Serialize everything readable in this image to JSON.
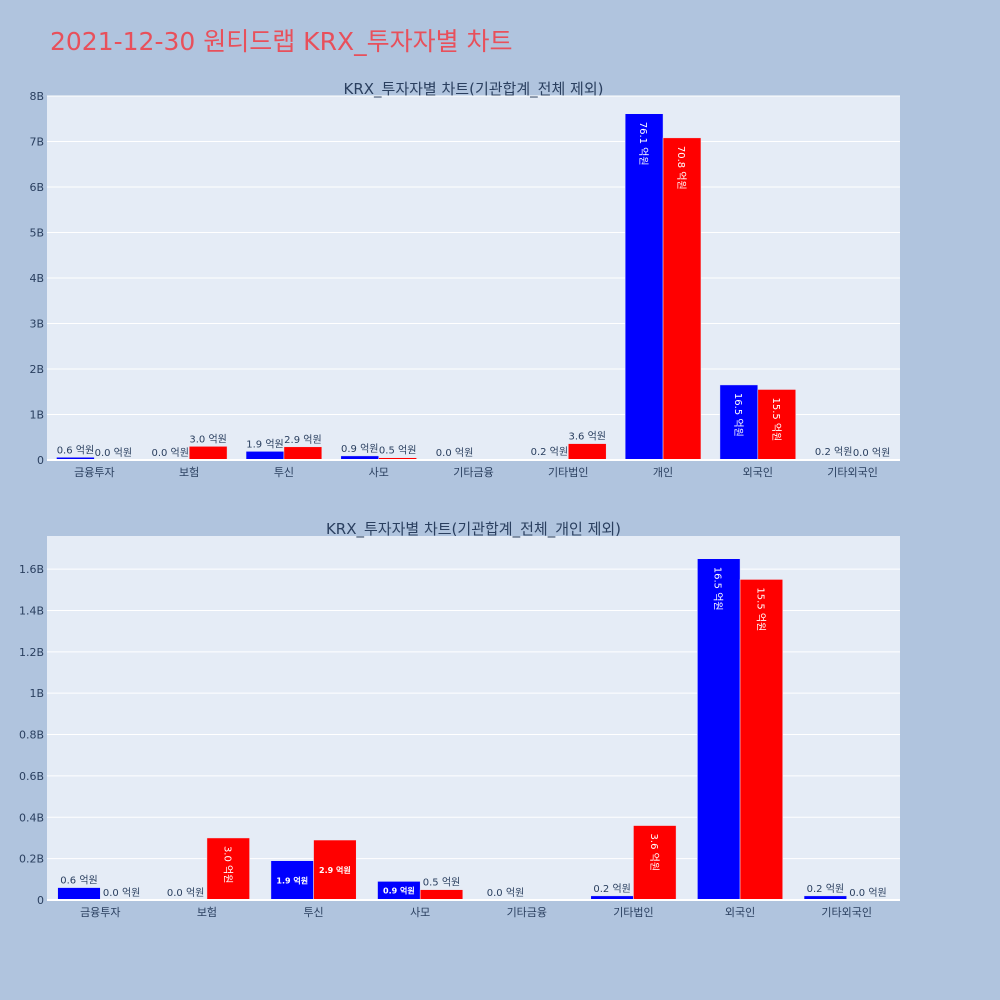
{
  "page": {
    "title": "2021-12-30 원티드랩 KRX_투자자별 차트"
  },
  "colors": {
    "series_a": "#0000ff",
    "series_b": "#ff0000",
    "title": "#e8505b"
  },
  "chart_data": [
    {
      "type": "bar",
      "title": "KRX_투자자별 차트(기관합계_전체 제외)",
      "categories": [
        "금융투자",
        "보험",
        "투신",
        "사모",
        "기타금융",
        "기타법인",
        "개인",
        "외국인",
        "기타외국인"
      ],
      "series": [
        {
          "values": [
            60000000,
            0,
            190000000,
            90000000,
            0,
            20000000,
            7610000000,
            1650000000,
            20000000
          ],
          "labels": [
            "0.6 억원",
            "0.0 억원",
            "1.9 억원",
            "0.9 억원",
            "0.0 억원",
            "0.2 억원",
            "76.1 억원",
            "16.5 억원",
            "0.2 억원"
          ]
        },
        {
          "values": [
            0,
            300000000,
            290000000,
            50000000,
            null,
            360000000,
            7080000000,
            1550000000,
            0
          ],
          "labels": [
            "0.0 억원",
            "3.0 억원",
            "2.9 억원",
            "0.5 억원",
            "",
            "3.6 억원",
            "70.8 억원",
            "15.5 억원",
            "0.0 억원"
          ]
        }
      ],
      "ylim": [
        0,
        8000000000
      ],
      "yticks": [
        0,
        1000000000,
        2000000000,
        3000000000,
        4000000000,
        5000000000,
        6000000000,
        7000000000,
        8000000000
      ],
      "ytick_labels": [
        "0",
        "1B",
        "2B",
        "3B",
        "4B",
        "5B",
        "6B",
        "7B",
        "8B"
      ],
      "grid": true
    },
    {
      "type": "bar",
      "title": "KRX_투자자별 차트(기관합계_전체_개인 제외)",
      "categories": [
        "금융투자",
        "보험",
        "투신",
        "사모",
        "기타금융",
        "기타법인",
        "외국인",
        "기타외국인"
      ],
      "series": [
        {
          "values": [
            60000000,
            0,
            190000000,
            90000000,
            0,
            20000000,
            1650000000,
            20000000
          ],
          "labels": [
            "0.6 억원",
            "0.0 억원",
            "1.9 억원",
            "0.9 억원",
            "0.0 억원",
            "0.2 억원",
            "16.5 억원",
            "0.2 억원"
          ]
        },
        {
          "values": [
            0,
            300000000,
            290000000,
            50000000,
            null,
            360000000,
            1550000000,
            0
          ],
          "labels": [
            "0.0 억원",
            "3.0 억원",
            "2.9 억원",
            "0.5 억원",
            "",
            "3.6 억원",
            "15.5 억원",
            "0.0 억원"
          ]
        }
      ],
      "ylim": [
        0,
        1760000000
      ],
      "yticks": [
        0,
        200000000,
        400000000,
        600000000,
        800000000,
        1000000000,
        1200000000,
        1400000000,
        1600000000
      ],
      "ytick_labels": [
        "0",
        "0.2B",
        "0.4B",
        "0.6B",
        "0.8B",
        "1B",
        "1.2B",
        "1.4B",
        "1.6B"
      ],
      "grid": true
    }
  ]
}
